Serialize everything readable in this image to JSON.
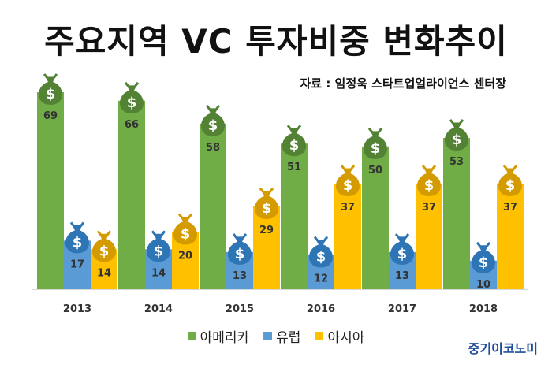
{
  "title": "주요지역 VC 투자비중 변화추이",
  "source": "자료 : 임정욱 스타트업얼라이언스 센터장",
  "brand": "중기이코노미",
  "icon": "money-bag-icon",
  "colors": {
    "americas": "#70ad47",
    "europe": "#5b9bd5",
    "asia": "#ffc000",
    "americas_bag": "#548235",
    "europe_bag": "#2e75b6",
    "asia_bag": "#d49b00"
  },
  "chart_data": {
    "type": "bar",
    "categories": [
      "2013",
      "2014",
      "2015",
      "2016",
      "2017",
      "2018"
    ],
    "series": [
      {
        "name": "아메리카",
        "values": [
          69,
          66,
          58,
          51,
          50,
          53
        ]
      },
      {
        "name": "유럽",
        "values": [
          17,
          14,
          13,
          12,
          13,
          10
        ]
      },
      {
        "name": "아시아",
        "values": [
          14,
          20,
          29,
          37,
          37,
          37
        ]
      }
    ],
    "title": "주요지역 VC 투자비중 변화추이",
    "xlabel": "",
    "ylabel": "",
    "ylim": [
      0,
      69
    ],
    "legend": "bottom",
    "grid": false
  }
}
